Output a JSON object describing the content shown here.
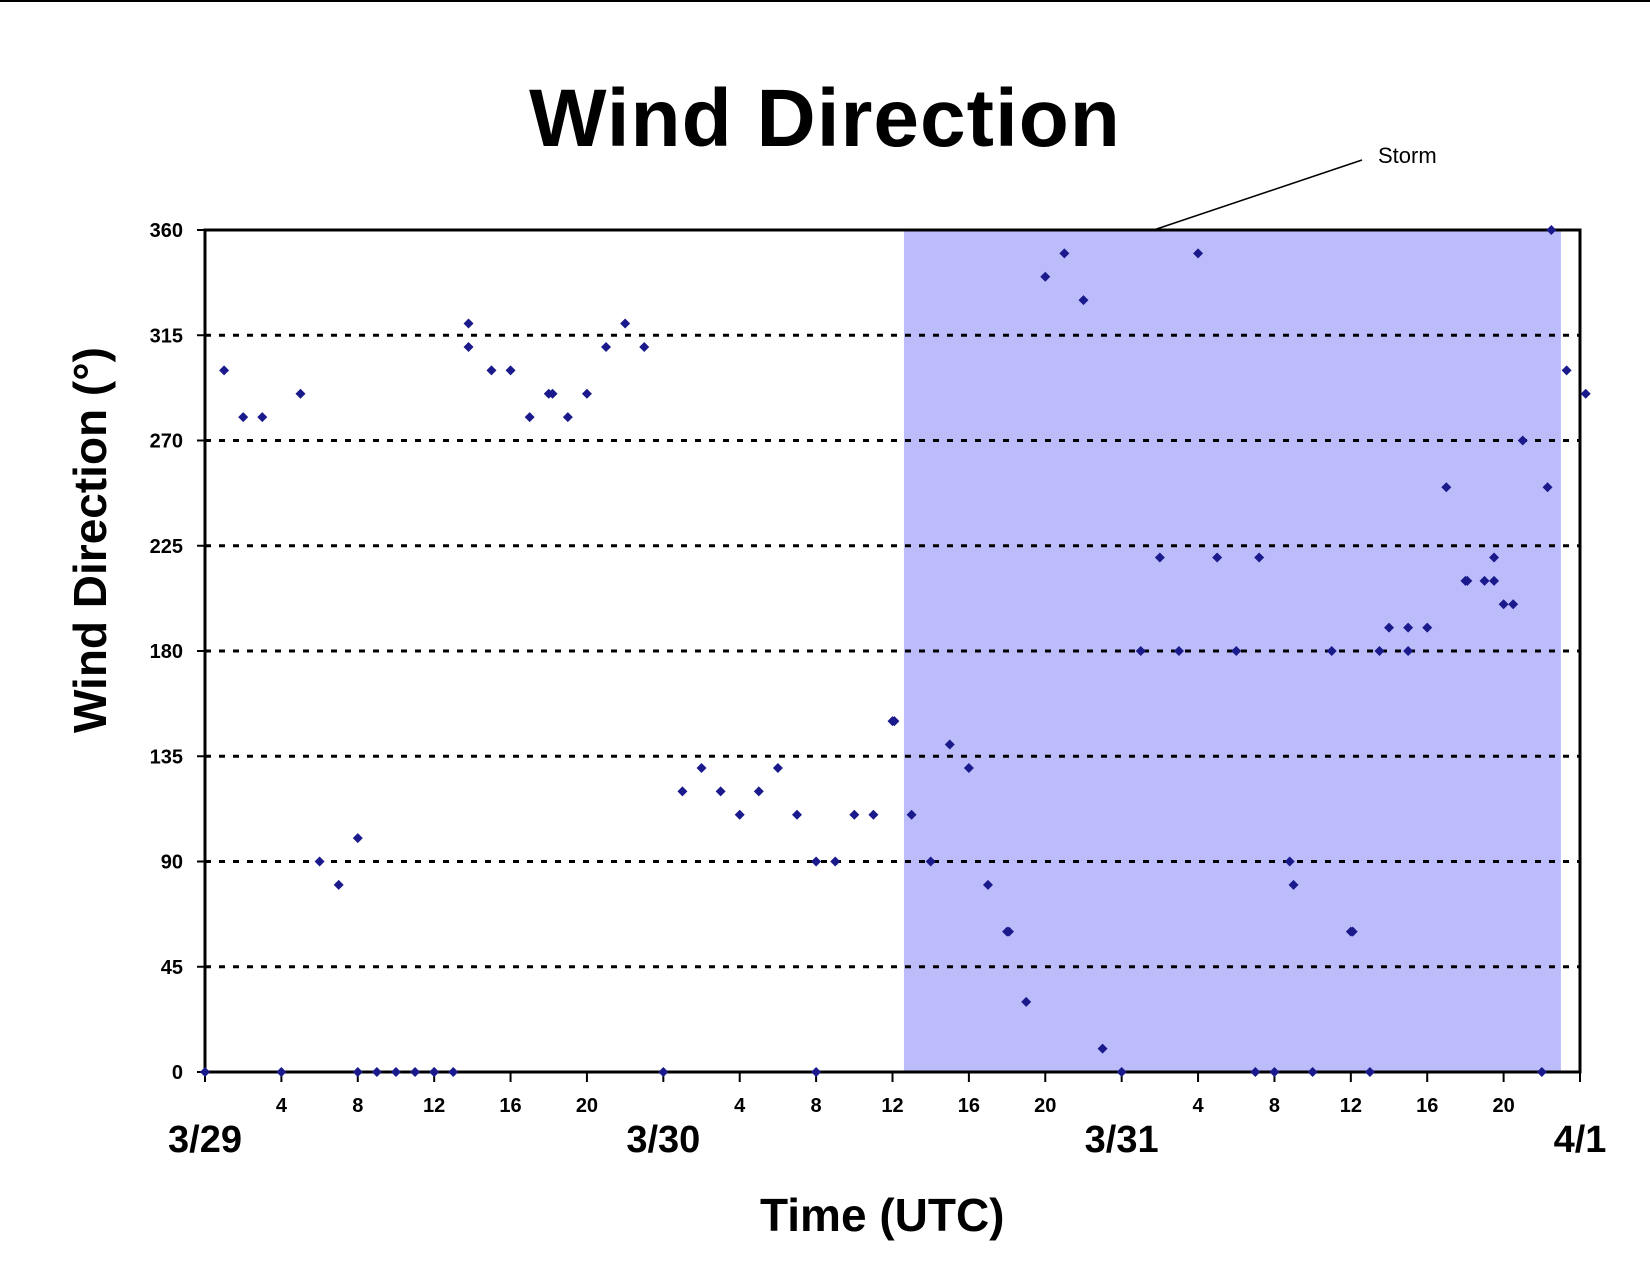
{
  "title": "Wind Direction",
  "chart_data": {
    "type": "scatter",
    "title": "Wind Direction",
    "xlabel": "Time (UTC)",
    "ylabel": "Wind Direction (°)",
    "x_unit": "hours since 3/29 00 UTC",
    "xlim": [
      0,
      72
    ],
    "ylim": [
      0,
      360
    ],
    "y_ticks": [
      0,
      45,
      90,
      135,
      180,
      225,
      270,
      315,
      360
    ],
    "x_hour_ticks": [
      {
        "x": 4,
        "label": "4"
      },
      {
        "x": 8,
        "label": "8"
      },
      {
        "x": 12,
        "label": "12"
      },
      {
        "x": 16,
        "label": "16"
      },
      {
        "x": 20,
        "label": "20"
      },
      {
        "x": 28,
        "label": "4"
      },
      {
        "x": 32,
        "label": "8"
      },
      {
        "x": 36,
        "label": "12"
      },
      {
        "x": 40,
        "label": "16"
      },
      {
        "x": 44,
        "label": "20"
      },
      {
        "x": 52,
        "label": "4"
      },
      {
        "x": 56,
        "label": "8"
      },
      {
        "x": 60,
        "label": "12"
      },
      {
        "x": 64,
        "label": "16"
      },
      {
        "x": 68,
        "label": "20"
      }
    ],
    "x_date_labels": [
      {
        "x": 0,
        "label": "3/29"
      },
      {
        "x": 24,
        "label": "3/30"
      },
      {
        "x": 48,
        "label": "3/31"
      },
      {
        "x": 72,
        "label": "4/1"
      }
    ],
    "grid": "dotted horizontal at 45° intervals",
    "shaded_region": {
      "x_start": 36.6,
      "x_end": 71,
      "label": "Storm",
      "color": "#bcbcfb"
    },
    "marker_color": "#1a1a8c",
    "series": [
      {
        "points": [
          [
            0,
            0
          ],
          [
            1,
            300
          ],
          [
            2,
            280
          ],
          [
            3,
            280
          ],
          [
            4,
            0
          ],
          [
            5,
            290
          ],
          [
            6,
            90
          ],
          [
            7,
            80
          ],
          [
            8,
            100
          ],
          [
            8,
            0
          ],
          [
            9,
            0
          ],
          [
            10,
            0
          ],
          [
            11,
            0
          ],
          [
            12,
            0
          ],
          [
            12,
            0
          ],
          [
            13,
            0
          ],
          [
            13.8,
            320
          ],
          [
            13.8,
            310
          ],
          [
            15,
            300
          ],
          [
            16,
            300
          ],
          [
            17,
            280
          ],
          [
            18,
            290
          ],
          [
            18.2,
            290
          ],
          [
            19,
            280
          ],
          [
            20,
            290
          ],
          [
            21,
            310
          ],
          [
            22,
            320
          ],
          [
            23,
            310
          ],
          [
            24,
            0
          ],
          [
            25,
            120
          ],
          [
            26,
            130
          ],
          [
            27,
            120
          ],
          [
            28,
            110
          ],
          [
            29,
            120
          ],
          [
            30,
            130
          ],
          [
            31,
            110
          ],
          [
            32,
            90
          ],
          [
            32,
            0
          ],
          [
            33,
            90
          ],
          [
            34,
            110
          ],
          [
            35,
            110
          ],
          [
            36,
            150
          ],
          [
            36.1,
            150
          ],
          [
            37,
            110
          ],
          [
            38,
            90
          ],
          [
            39,
            140
          ],
          [
            40,
            130
          ],
          [
            41,
            80
          ],
          [
            42,
            60
          ],
          [
            42.1,
            60
          ],
          [
            43,
            30
          ],
          [
            44,
            340
          ],
          [
            45,
            350
          ],
          [
            46,
            330
          ],
          [
            47,
            10
          ],
          [
            48,
            0
          ],
          [
            49,
            180
          ],
          [
            50,
            220
          ],
          [
            51,
            180
          ],
          [
            52,
            350
          ],
          [
            53,
            220
          ],
          [
            54,
            180
          ],
          [
            55,
            0
          ],
          [
            55.2,
            220
          ],
          [
            56,
            0
          ],
          [
            56.8,
            90
          ],
          [
            57,
            80
          ],
          [
            58,
            0
          ],
          [
            59,
            180
          ],
          [
            60,
            60
          ],
          [
            60.1,
            60
          ],
          [
            61,
            0
          ],
          [
            61.5,
            180
          ],
          [
            62,
            190
          ],
          [
            63,
            190
          ],
          [
            63,
            180
          ],
          [
            64,
            190
          ],
          [
            65,
            250
          ],
          [
            66,
            210
          ],
          [
            66.1,
            210
          ],
          [
            67,
            210
          ],
          [
            67.5,
            220
          ],
          [
            67.5,
            210
          ],
          [
            68,
            200
          ],
          [
            68.5,
            200
          ],
          [
            69,
            270
          ],
          [
            70,
            0
          ],
          [
            70.3,
            250
          ],
          [
            70.5,
            360
          ],
          [
            71.3,
            300
          ],
          [
            72.3,
            290
          ]
        ]
      }
    ]
  }
}
